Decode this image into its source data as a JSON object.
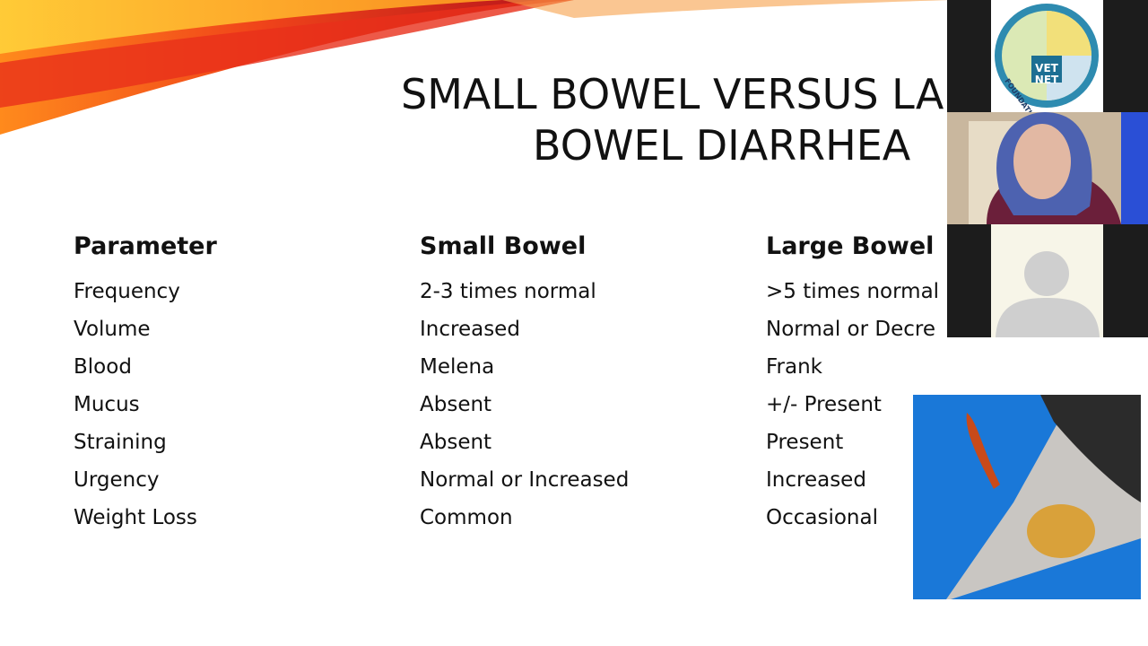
{
  "slide": {
    "title_lines": [
      "SMALL BOWEL VERSUS LA",
      "BOWEL DIARRHEA"
    ],
    "table": {
      "header": [
        "Parameter",
        "Small Bowel",
        "Large Bowel"
      ],
      "rows": [
        [
          "Frequency",
          "2-3 times normal",
          ">5 times normal"
        ],
        [
          "Volume",
          "Increased",
          "Normal or Decre"
        ],
        [
          "Blood",
          "Melena",
          "Frank"
        ],
        [
          "Mucus",
          "Absent",
          "+/- Present"
        ],
        [
          "Straining",
          "Absent",
          "Present"
        ],
        [
          "Urgency",
          "Normal or Increased",
          "Increased"
        ],
        [
          "Weight Loss",
          "Common",
          "Occasional"
        ]
      ]
    }
  },
  "video_panel": {
    "logo": {
      "lines": [
        "VET",
        "NET"
      ],
      "caption": "FOUNDATION"
    }
  }
}
